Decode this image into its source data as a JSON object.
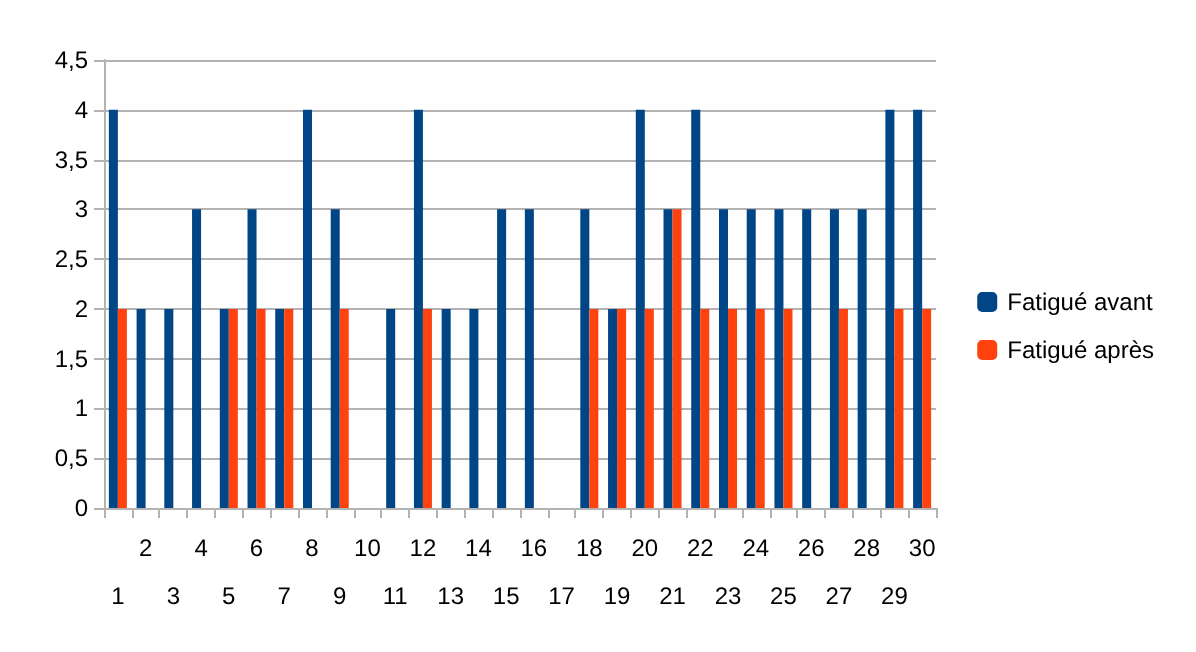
{
  "chart_data": {
    "type": "bar",
    "categories": [
      "1",
      "2",
      "3",
      "4",
      "5",
      "6",
      "7",
      "8",
      "9",
      "10",
      "11",
      "12",
      "13",
      "14",
      "15",
      "16",
      "17",
      "18",
      "19",
      "20",
      "21",
      "22",
      "23",
      "24",
      "25",
      "26",
      "27",
      "28",
      "29",
      "30"
    ],
    "series": [
      {
        "name": "Fatigué avant",
        "color": "#004586",
        "values": [
          4,
          2,
          2,
          3,
          2,
          3,
          2,
          4,
          3,
          0,
          2,
          4,
          2,
          2,
          3,
          3,
          0,
          3,
          2,
          4,
          3,
          4,
          3,
          3,
          3,
          3,
          3,
          3,
          4,
          4
        ]
      },
      {
        "name": "Fatigué après",
        "color": "#ff420e",
        "values": [
          2,
          0,
          0,
          0,
          2,
          2,
          2,
          0,
          2,
          0,
          0,
          2,
          0,
          0,
          0,
          0,
          0,
          2,
          2,
          2,
          3,
          2,
          2,
          2,
          2,
          0,
          2,
          0,
          2,
          2
        ]
      }
    ],
    "ylim": [
      0,
      4.5
    ],
    "yticks": [
      0,
      {
        "value": 0.5,
        "label": "0,5"
      },
      1,
      {
        "value": 1.5,
        "label": "1,5"
      },
      2,
      {
        "value": 2.5,
        "label": "2,5"
      },
      3,
      {
        "value": 3.5,
        "label": "3,5"
      },
      4,
      {
        "value": 4.5,
        "label": "4,5"
      }
    ],
    "grid": "y",
    "legend": "right"
  }
}
